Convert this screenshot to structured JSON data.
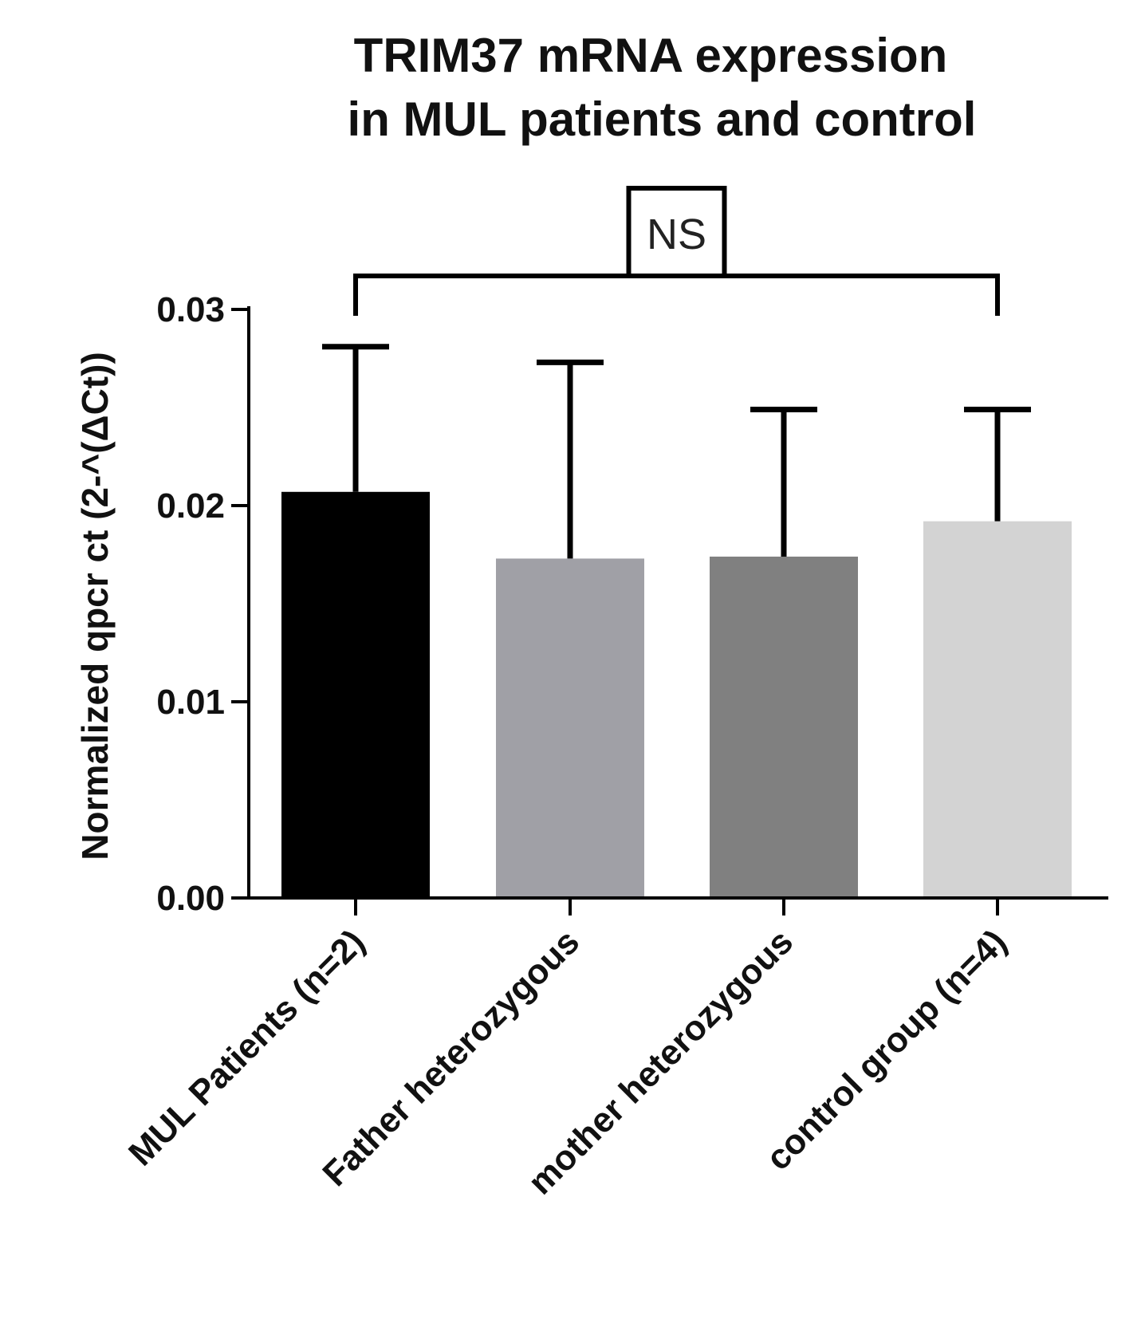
{
  "chart_data": {
    "type": "bar",
    "title_lines": [
      "TRIM37 mRNA expression",
      "in MUL patients and control"
    ],
    "xlabel": "",
    "ylabel": "Normalized qpcr ct (2-^(ΔCt))",
    "ylim": [
      0,
      0.03
    ],
    "yticks": [
      "0.00",
      "0.01",
      "0.02",
      "0.03"
    ],
    "ytick_values": [
      0,
      0.01,
      0.02,
      0.03
    ],
    "categories": [
      "MUL Patients (n=2)",
      "Father heterozygous",
      "mother heterozygous",
      "control group (n=4)"
    ],
    "values": [
      0.0207,
      0.0173,
      0.0174,
      0.0192
    ],
    "error_upper": [
      0.0281,
      0.0273,
      0.0249,
      0.0249
    ],
    "bar_colors": [
      "#000000",
      "#a0a0a6",
      "#808080",
      "#d3d3d3"
    ],
    "significance": {
      "label": "NS",
      "from_category": 0,
      "to_category": 3
    },
    "grid": false,
    "legend": "none"
  }
}
